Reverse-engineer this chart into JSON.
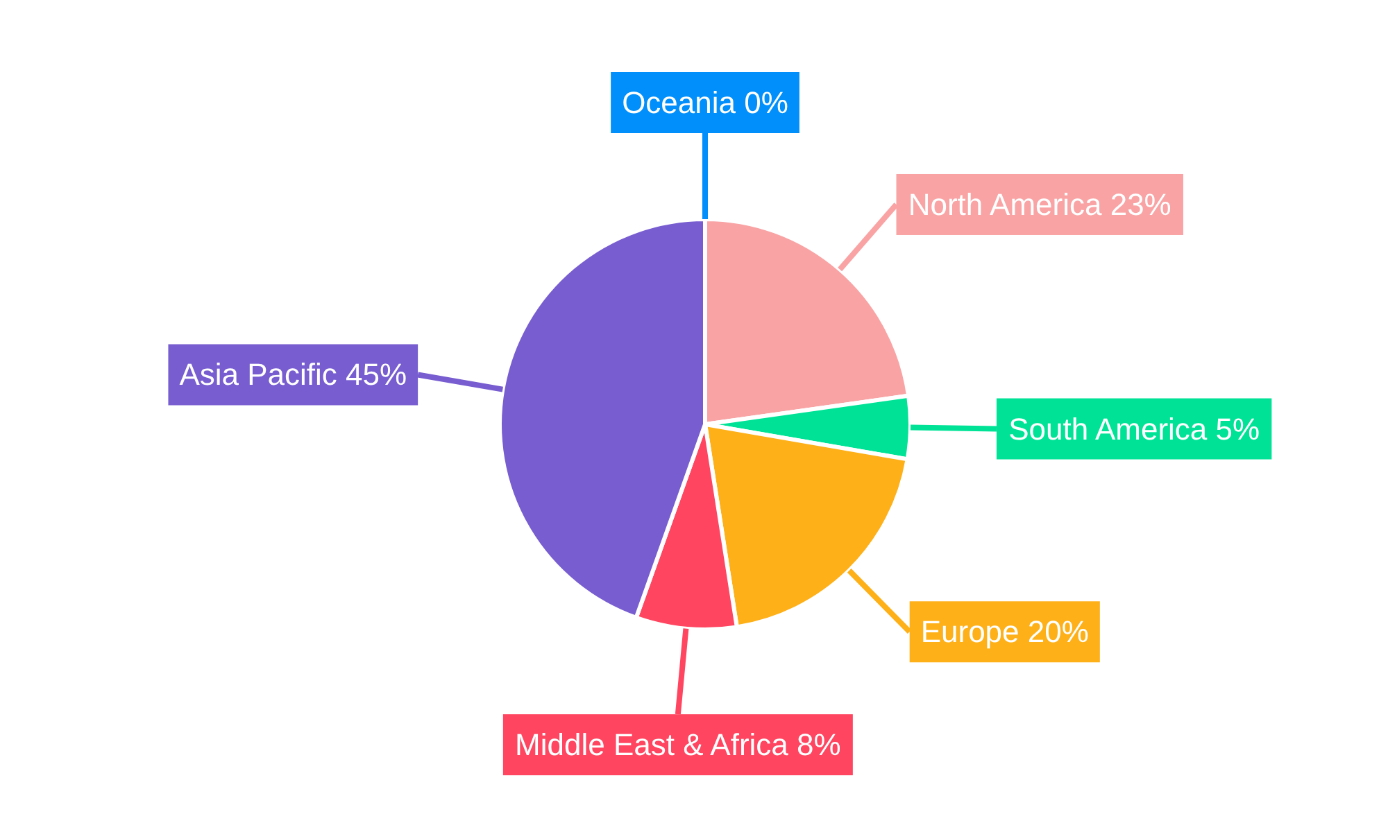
{
  "chart_data": {
    "type": "pie",
    "categories": [
      "North America",
      "South America",
      "Europe",
      "Middle East & Africa",
      "Asia Pacific",
      "Oceania"
    ],
    "values": [
      23,
      5,
      20,
      8,
      45,
      0
    ],
    "value_labels": [
      "23%",
      "5%",
      "20%",
      "8%",
      "45%",
      "0%"
    ],
    "colors": [
      "#f9a3a4",
      "#00e396",
      "#feb019",
      "#ff4560",
      "#775dd0",
      "#008ffb"
    ]
  }
}
